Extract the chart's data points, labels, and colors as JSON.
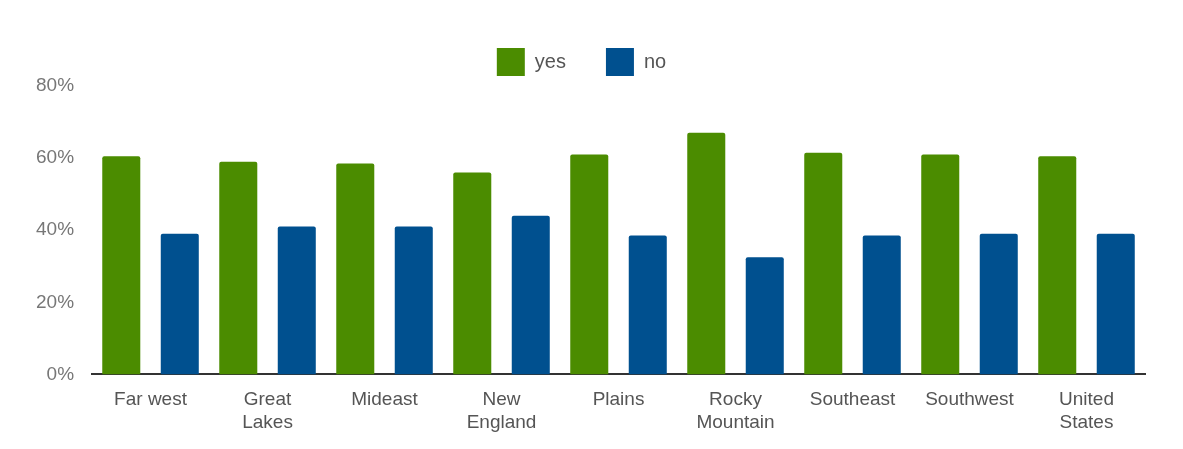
{
  "chart_data": {
    "type": "bar",
    "categories": [
      "Far west",
      "Great Lakes",
      "Mideast",
      "New England",
      "Plains",
      "Rocky Mountain",
      "Southeast",
      "Southwest",
      "United States"
    ],
    "series": [
      {
        "name": "yes",
        "color": "#4b8c00",
        "values": [
          60.5,
          59,
          58.5,
          56,
          61,
          67,
          61.5,
          61,
          60.5
        ]
      },
      {
        "name": "no",
        "color": "#00508f",
        "values": [
          39,
          41,
          41,
          44,
          38.5,
          32.5,
          38.5,
          39,
          39
        ]
      }
    ],
    "ylim": [
      0,
      80
    ],
    "yticks": [
      {
        "value": 0,
        "label": "0%"
      },
      {
        "value": 20,
        "label": "20%"
      },
      {
        "value": 40,
        "label": "40%"
      },
      {
        "value": 60,
        "label": "60%"
      },
      {
        "value": 80,
        "label": "80%"
      }
    ],
    "grid": false,
    "legend": "top"
  }
}
